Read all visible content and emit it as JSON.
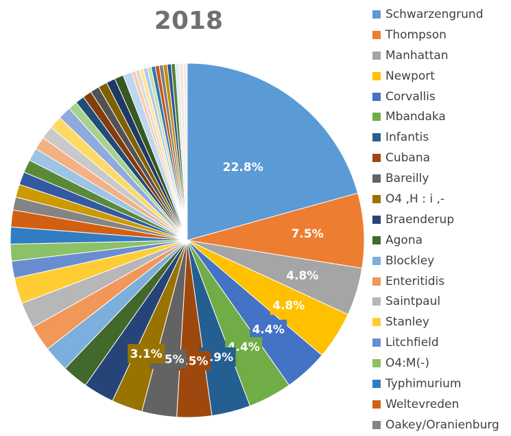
{
  "chart_data": {
    "type": "pie",
    "title": "2018",
    "legend_placement": "right",
    "slices": [
      {
        "label": "Schwarzengrund",
        "value": 22.8,
        "color": "#5B9BD5"
      },
      {
        "label": "Thompson",
        "value": 7.5,
        "color": "#ED7D31"
      },
      {
        "label": "Manhattan",
        "value": 4.8,
        "color": "#A5A5A5"
      },
      {
        "label": "Newport",
        "value": 4.8,
        "color": "#FFC000"
      },
      {
        "label": "Corvallis",
        "value": 4.4,
        "color": "#4472C4"
      },
      {
        "label": "Mbandaka",
        "value": 4.4,
        "color": "#70AD47"
      },
      {
        "label": "Infantis",
        "value": 3.9,
        "color": "#255E91"
      },
      {
        "label": "Cubana",
        "value": 3.5,
        "color": "#9E480E"
      },
      {
        "label": "Bareilly",
        "value": 3.5,
        "color": "#636363"
      },
      {
        "label": "O4 ,H : i ,-",
        "value": 3.1,
        "color": "#997300"
      },
      {
        "label": "Braenderup",
        "value": 3.1,
        "color": "#264478"
      },
      {
        "label": "Agona",
        "value": 2.6,
        "color": "#43682B"
      },
      {
        "label": "Blockley",
        "value": 2.6,
        "color": "#7CAFDD"
      },
      {
        "label": "Enteritidis",
        "value": 2.6,
        "color": "#F1975A"
      },
      {
        "label": "Saintpaul",
        "value": 2.6,
        "color": "#B7B7B7"
      },
      {
        "label": "Stanley",
        "value": 2.6,
        "color": "#FFCD33"
      },
      {
        "label": "Litchfield",
        "value": 1.7,
        "color": "#698ED0"
      },
      {
        "label": "O4:M(-)",
        "value": 1.7,
        "color": "#8CC168"
      },
      {
        "label": "Typhimurium",
        "value": 1.7,
        "color": "#327DC2"
      },
      {
        "label": "Weltevreden",
        "value": 1.7,
        "color": "#D26012"
      },
      {
        "label": "Oakey/Oranienburg",
        "value": 1.3,
        "color": "#848484"
      },
      {
        "label": "",
        "value": 1.3,
        "color": "#CC9A00"
      },
      {
        "label": "",
        "value": 1.3,
        "color": "#335AA1"
      },
      {
        "label": "",
        "value": 1.3,
        "color": "#5A8A39"
      },
      {
        "label": "",
        "value": 1.3,
        "color": "#9DC3E6"
      },
      {
        "label": "",
        "value": 1.3,
        "color": "#F4B183"
      },
      {
        "label": "",
        "value": 1.3,
        "color": "#C9C9C9"
      },
      {
        "label": "",
        "value": 1.3,
        "color": "#FFD966"
      },
      {
        "label": "",
        "value": 1.3,
        "color": "#8FAADC"
      },
      {
        "label": "",
        "value": 0.9,
        "color": "#A9D18E"
      },
      {
        "label": "",
        "value": 0.9,
        "color": "#1F4E79"
      },
      {
        "label": "",
        "value": 0.9,
        "color": "#843C0C"
      },
      {
        "label": "",
        "value": 0.9,
        "color": "#525252"
      },
      {
        "label": "",
        "value": 0.9,
        "color": "#806000"
      },
      {
        "label": "",
        "value": 0.9,
        "color": "#203864"
      },
      {
        "label": "",
        "value": 0.9,
        "color": "#385723"
      },
      {
        "label": "",
        "value": 0.9,
        "color": "#BDD7EE"
      },
      {
        "label": "",
        "value": 0.4,
        "color": "#F8CBAD"
      },
      {
        "label": "",
        "value": 0.4,
        "color": "#DBDBDB"
      },
      {
        "label": "",
        "value": 0.4,
        "color": "#FFE699"
      },
      {
        "label": "",
        "value": 0.4,
        "color": "#B4C7E7"
      },
      {
        "label": "",
        "value": 0.4,
        "color": "#C5E0B4"
      },
      {
        "label": "",
        "value": 0.4,
        "color": "#2E75B6"
      },
      {
        "label": "",
        "value": 0.4,
        "color": "#C55A11"
      },
      {
        "label": "",
        "value": 0.4,
        "color": "#7F7F7F"
      },
      {
        "label": "",
        "value": 0.4,
        "color": "#BF9000"
      },
      {
        "label": "",
        "value": 0.4,
        "color": "#2F5597"
      },
      {
        "label": "",
        "value": 0.4,
        "color": "#548235"
      },
      {
        "label": "",
        "value": 0.4,
        "color": "#DEEBF7"
      },
      {
        "label": "",
        "value": 0.4,
        "color": "#FBE5D6"
      },
      {
        "label": "",
        "value": 0.4,
        "color": "#EDEDED"
      }
    ],
    "data_labels": [
      {
        "slice": 0,
        "text": "22.8%"
      },
      {
        "slice": 1,
        "text": "7.5%"
      },
      {
        "slice": 2,
        "text": "4.8%"
      },
      {
        "slice": 3,
        "text": "4.8%"
      },
      {
        "slice": 4,
        "text": "4.4%"
      },
      {
        "slice": 5,
        "text": "4.4%"
      },
      {
        "slice": 6,
        "text": "3.9%"
      },
      {
        "slice": 7,
        "text": "3.5%"
      },
      {
        "slice": 8,
        "text": "3.5%"
      },
      {
        "slice": 9,
        "text": "3.1%"
      }
    ],
    "legend": [
      "Schwarzengrund",
      "Thompson",
      "Manhattan",
      "Newport",
      "Corvallis",
      "Mbandaka",
      "Infantis",
      "Cubana",
      "Bareilly",
      "O4 ,H : i ,-",
      "Braenderup",
      "Agona",
      "Blockley",
      "Enteritidis",
      "Saintpaul",
      "Stanley",
      "Litchfield",
      "O4:M(-)",
      "Typhimurium",
      "Weltevreden",
      "Oakey/Oranienburg"
    ]
  }
}
